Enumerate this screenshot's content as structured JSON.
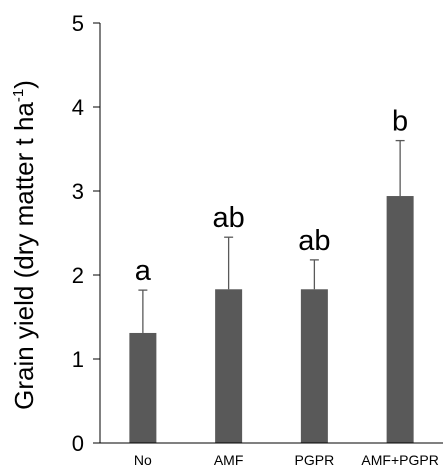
{
  "chart_data": {
    "type": "bar",
    "title": "",
    "xlabel": "",
    "ylabel": "Grain yield (dry matter t ha",
    "ylabel_superscript": "-1",
    "ylabel_close": ")",
    "categories": [
      "No",
      "AMF",
      "PGPR",
      "AMF+PGPR"
    ],
    "values": [
      1.31,
      1.83,
      1.83,
      2.94
    ],
    "error_upper": [
      1.82,
      2.45,
      2.18,
      3.6
    ],
    "significance_letters": [
      "a",
      "ab",
      "ab",
      "b"
    ],
    "ylim": [
      0,
      5
    ],
    "yticks": [
      "0",
      "1",
      "2",
      "3",
      "4",
      "5"
    ],
    "grid": false,
    "colors": {
      "bar": "#595959",
      "axis": "#000000",
      "error_bar": "#595959"
    }
  }
}
